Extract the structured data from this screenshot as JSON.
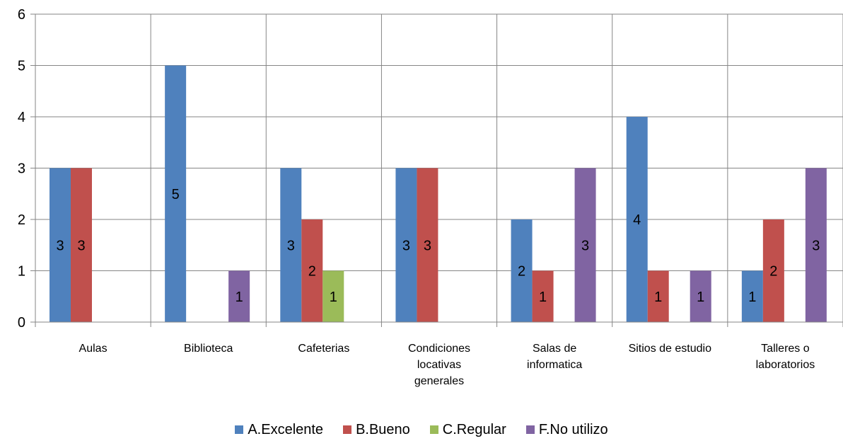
{
  "chart_data": {
    "type": "bar",
    "categories": [
      [
        "Aulas"
      ],
      [
        "Biblioteca"
      ],
      [
        "Cafeterias"
      ],
      [
        "Condiciones",
        "locativas",
        "generales"
      ],
      [
        "Salas de",
        "informatica"
      ],
      [
        "Sitios de estudio"
      ],
      [
        "Talleres o",
        "laboratorios"
      ]
    ],
    "series": [
      {
        "name": "A.Excelente",
        "color": "#4F81BD",
        "values": [
          3,
          5,
          3,
          3,
          2,
          4,
          1
        ]
      },
      {
        "name": "B.Bueno",
        "color": "#C0504D",
        "values": [
          3,
          0,
          2,
          3,
          1,
          1,
          2
        ]
      },
      {
        "name": "C.Regular",
        "color": "#9BBB59",
        "values": [
          0,
          0,
          1,
          0,
          0,
          0,
          0
        ]
      },
      {
        "name": "F.No utilizo",
        "color": "#8064A2",
        "values": [
          0,
          1,
          0,
          0,
          3,
          1,
          3
        ]
      }
    ],
    "ylim": [
      0,
      6
    ],
    "yticks": [
      0,
      1,
      2,
      3,
      4,
      5,
      6
    ],
    "grid": true,
    "legend_position": "bottom",
    "data_labels": true
  }
}
